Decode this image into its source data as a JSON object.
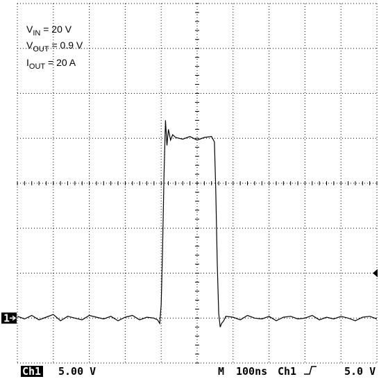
{
  "chart_data": {
    "type": "line",
    "annotations": [
      {
        "symbol": "V",
        "subscript": "IN",
        "text": " = 20 V"
      },
      {
        "symbol": "V",
        "subscript": "OUT",
        "text": " = 0.9 V"
      },
      {
        "symbol": "I",
        "subscript": "OUT",
        "text": " = 20 A"
      }
    ],
    "channel_marker": "1",
    "channel": "Ch1",
    "scale_label": "5.00 V",
    "timebase_prefix": "M",
    "timebase": "100ns",
    "trigger": {
      "source": "Ch1",
      "level": 5,
      "level_label": "5.0 V"
    },
    "xlim": [
      0,
      1000
    ],
    "ylim": [
      -5,
      35
    ],
    "grid": true,
    "color": "#000000",
    "x": [
      0,
      20,
      40,
      60,
      80,
      100,
      120,
      140,
      160,
      180,
      200,
      220,
      240,
      260,
      280,
      300,
      320,
      340,
      360,
      380,
      390,
      396,
      400,
      404,
      408,
      412,
      416,
      420,
      426,
      432,
      440,
      460,
      480,
      500,
      520,
      540,
      548,
      552,
      556,
      560,
      564,
      568,
      574,
      580,
      600,
      620,
      640,
      660,
      680,
      700,
      720,
      740,
      760,
      780,
      800,
      820,
      840,
      860,
      880,
      900,
      920,
      940,
      960,
      980,
      1000
    ],
    "values": [
      0.2,
      -0.1,
      0.3,
      -0.2,
      0.1,
      0.4,
      -0.3,
      0.2,
      0,
      -0.2,
      0.3,
      0.1,
      -0.1,
      0.2,
      -0.3,
      0.1,
      0.3,
      -0.2,
      0.1,
      0,
      -0.2,
      -0.6,
      1.5,
      8,
      16,
      22,
      19.2,
      21,
      19.8,
      20.4,
      20.1,
      19.9,
      20.2,
      19.8,
      20.1,
      20.2,
      19.6,
      14,
      6,
      0.5,
      -1.0,
      -0.6,
      -0.3,
      0.2,
      0.1,
      -0.2,
      0.3,
      0,
      -0.1,
      0.2,
      -0.3,
      0.1,
      0.2,
      -0.1,
      0,
      0.3,
      -0.2,
      0.1,
      -0.1,
      0.2,
      0,
      -0.3,
      0.1,
      0.2,
      -0.1
    ]
  }
}
